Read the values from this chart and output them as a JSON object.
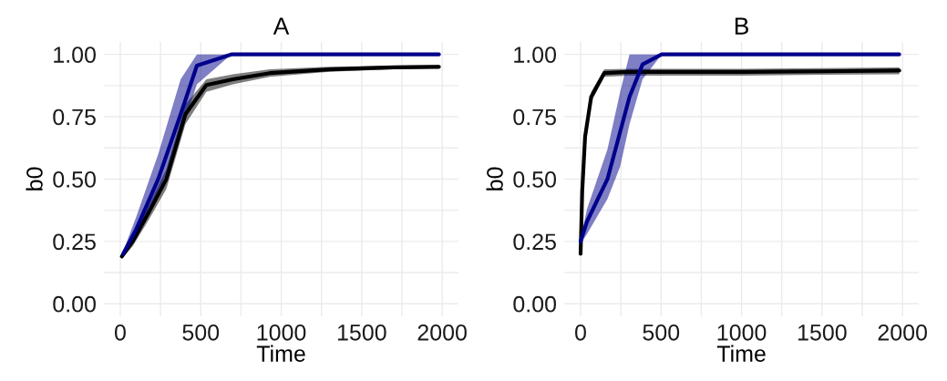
{
  "chart_data": [
    {
      "type": "line",
      "title": "A",
      "xlabel": "Time",
      "ylabel": "b0",
      "xlim": [
        -100,
        2100
      ],
      "ylim": [
        -0.05,
        1.05
      ],
      "xticks": [
        0,
        {
          "value": 250,
          "label": null
        },
        500,
        {
          "value": 750,
          "label": null
        },
        1000,
        {
          "value": 1250,
          "label": null
        },
        1500,
        {
          "value": 1750,
          "label": null
        },
        2000
      ],
      "yticks": [
        {
          "value": 0,
          "label": "0.00"
        },
        {
          "value": 0.125,
          "label": null
        },
        {
          "value": 0.25,
          "label": "0.25"
        },
        {
          "value": 0.375,
          "label": null
        },
        {
          "value": 0.5,
          "label": "0.50"
        },
        {
          "value": 0.625,
          "label": null
        },
        {
          "value": 0.75,
          "label": "0.75"
        },
        {
          "value": 0.875,
          "label": null
        },
        {
          "value": 1,
          "label": "1.00"
        }
      ],
      "grid": true,
      "legend": false,
      "series": [
        {
          "color": "#000000",
          "x": [
            10,
            77,
            180,
            286,
            405,
            535,
            700,
            930,
            1300,
            1700,
            1980
          ],
          "values": [
            0.19,
            0.25,
            0.37,
            0.5,
            0.76,
            0.877,
            0.9,
            0.925,
            0.94,
            0.948,
            0.95
          ],
          "lower": [
            0.18,
            0.23,
            0.34,
            0.46,
            0.72,
            0.85,
            0.88,
            0.91,
            0.93,
            0.94,
            0.945
          ],
          "upper": [
            0.2,
            0.27,
            0.4,
            0.54,
            0.8,
            0.9,
            0.92,
            0.94,
            0.95,
            0.955,
            0.958
          ]
        },
        {
          "color": "#00008b",
          "x": [
            18,
            100,
            236,
            375,
            476,
            690,
            1000,
            1500,
            1980
          ],
          "values": [
            0.2,
            0.3,
            0.5,
            0.76,
            0.955,
            1,
            1,
            1,
            1
          ],
          "lower": [
            0.19,
            0.26,
            0.44,
            0.68,
            0.88,
            1,
            1,
            1,
            1
          ],
          "upper": [
            0.21,
            0.35,
            0.6,
            0.9,
            1,
            1,
            1,
            1,
            1
          ]
        }
      ]
    },
    {
      "type": "line",
      "title": "B",
      "xlabel": "Time",
      "ylabel": "b0",
      "xlim": [
        -100,
        2100
      ],
      "ylim": [
        -0.05,
        1.05
      ],
      "xticks": [
        0,
        {
          "value": 250,
          "label": null
        },
        500,
        {
          "value": 750,
          "label": null
        },
        1000,
        {
          "value": 1250,
          "label": null
        },
        1500,
        {
          "value": 1750,
          "label": null
        },
        2000
      ],
      "yticks": [
        {
          "value": 0,
          "label": "0.00"
        },
        {
          "value": 0.125,
          "label": null
        },
        {
          "value": 0.25,
          "label": "0.25"
        },
        {
          "value": 0.375,
          "label": null
        },
        {
          "value": 0.5,
          "label": "0.50"
        },
        {
          "value": 0.625,
          "label": null
        },
        {
          "value": 0.75,
          "label": "0.75"
        },
        {
          "value": 0.875,
          "label": null
        },
        {
          "value": 1,
          "label": "1.00"
        }
      ],
      "grid": true,
      "legend": false,
      "series": [
        {
          "color": "#000000",
          "x": [
            0,
            10,
            28,
            66,
            147,
            300,
            1000,
            1500,
            1980
          ],
          "values": [
            0.2,
            0.45,
            0.67,
            0.83,
            0.925,
            0.93,
            0.93,
            0.932,
            0.935
          ],
          "lower": [
            0.19,
            0.43,
            0.65,
            0.81,
            0.91,
            0.915,
            0.915,
            0.918,
            0.92
          ],
          "upper": [
            0.21,
            0.47,
            0.69,
            0.85,
            0.94,
            0.942,
            0.942,
            0.945,
            0.948
          ]
        },
        {
          "color": "#00008b",
          "x": [
            0,
            40,
            167,
            246,
            304,
            385,
            504,
            1000,
            1500,
            1980
          ],
          "values": [
            0.25,
            0.33,
            0.5,
            0.69,
            0.83,
            0.96,
            1,
            1,
            1,
            1
          ],
          "lower": [
            0.24,
            0.28,
            0.42,
            0.55,
            0.72,
            0.9,
            1,
            1,
            1,
            1
          ],
          "upper": [
            0.26,
            0.38,
            0.62,
            0.85,
            1,
            1,
            1,
            1,
            1,
            1
          ]
        }
      ]
    }
  ]
}
